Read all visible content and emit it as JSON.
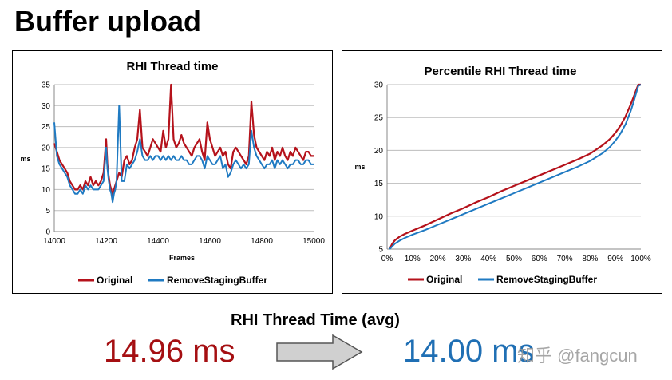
{
  "slide_title": "Buffer upload",
  "avg": {
    "heading": "RHI Thread Time (avg)",
    "original": "14.96 ms",
    "new": "14.00 ms"
  },
  "watermark": "知乎 @fangcun",
  "colors": {
    "original": "#b5121b",
    "remove": "#1f7ac2",
    "arrow_fill": "#d0d0d0",
    "arrow_stroke": "#555555"
  },
  "chart_data": [
    {
      "type": "line",
      "title": "RHI Thread time",
      "xlabel": "Frames",
      "ylabel": "ms",
      "xlim": [
        14000,
        15000
      ],
      "ylim": [
        0,
        35
      ],
      "x_ticks": [
        "14000",
        "14200",
        "14400",
        "14600",
        "14800",
        "15000"
      ],
      "y_ticks": [
        "0",
        "5",
        "10",
        "15",
        "20",
        "25",
        "30",
        "35"
      ],
      "grid": true,
      "legend": "bottom",
      "x": [
        14000,
        14010,
        14020,
        14030,
        14040,
        14050,
        14060,
        14070,
        14080,
        14090,
        14100,
        14110,
        14120,
        14130,
        14140,
        14150,
        14160,
        14170,
        14180,
        14190,
        14200,
        14205,
        14210,
        14215,
        14220,
        14225,
        14230,
        14235,
        14240,
        14250,
        14260,
        14270,
        14280,
        14290,
        14300,
        14310,
        14320,
        14330,
        14340,
        14350,
        14360,
        14370,
        14380,
        14390,
        14400,
        14410,
        14420,
        14430,
        14440,
        14450,
        14460,
        14470,
        14480,
        14490,
        14500,
        14510,
        14520,
        14530,
        14540,
        14550,
        14560,
        14570,
        14580,
        14590,
        14600,
        14610,
        14620,
        14630,
        14640,
        14650,
        14660,
        14670,
        14680,
        14690,
        14700,
        14710,
        14720,
        14730,
        14740,
        14750,
        14760,
        14770,
        14780,
        14790,
        14800,
        14810,
        14820,
        14830,
        14840,
        14850,
        14860,
        14870,
        14880,
        14890,
        14900,
        14910,
        14920,
        14930,
        14940,
        14950,
        14960,
        14970,
        14980,
        14990,
        15000
      ],
      "series": [
        {
          "name": "Original",
          "values": [
            21,
            19,
            17,
            16,
            15,
            14,
            12,
            11,
            10,
            10,
            11,
            10,
            12,
            11,
            13,
            11,
            12,
            11,
            12,
            14,
            22,
            16,
            13,
            11,
            10,
            8,
            10,
            11,
            12,
            14,
            13,
            17,
            18,
            16,
            17,
            20,
            22,
            29,
            20,
            19,
            18,
            20,
            22,
            21,
            20,
            19,
            24,
            20,
            22,
            35,
            22,
            20,
            21,
            23,
            21,
            20,
            19,
            18,
            20,
            21,
            22,
            19,
            17,
            26,
            22,
            20,
            18,
            19,
            20,
            18,
            19,
            16,
            15,
            19,
            20,
            19,
            18,
            17,
            16,
            18,
            31,
            23,
            20,
            19,
            18,
            17,
            19,
            18,
            20,
            17,
            19,
            18,
            20,
            18,
            17,
            19,
            18,
            20,
            19,
            18,
            17,
            19,
            19,
            18,
            18
          ]
        },
        {
          "name": "RemoveStagingBuffer",
          "values": [
            26,
            18,
            16,
            15,
            14,
            13,
            11,
            10,
            9,
            9,
            10,
            9,
            11,
            10,
            11,
            10,
            10,
            10,
            11,
            12,
            20,
            15,
            12,
            10,
            9,
            7,
            9,
            10,
            12,
            30,
            12,
            12,
            16,
            15,
            16,
            17,
            19,
            22,
            18,
            17,
            17,
            18,
            17,
            18,
            18,
            17,
            18,
            17,
            18,
            17,
            18,
            17,
            17,
            18,
            17,
            17,
            16,
            16,
            17,
            18,
            18,
            17,
            15,
            18,
            17,
            16,
            16,
            17,
            18,
            15,
            16,
            13,
            14,
            16,
            17,
            16,
            15,
            16,
            15,
            16,
            24,
            20,
            18,
            17,
            16,
            15,
            16,
            16,
            17,
            15,
            17,
            16,
            17,
            16,
            15,
            16,
            16,
            17,
            17,
            16,
            16,
            17,
            17,
            16,
            16
          ]
        }
      ]
    },
    {
      "type": "line",
      "title": "Percentile RHI Thread time",
      "xlabel": "",
      "ylabel": "ms",
      "xlim": [
        0,
        100
      ],
      "ylim": [
        5,
        30
      ],
      "x_ticks": [
        "0%",
        "10%",
        "20%",
        "30%",
        "40%",
        "50%",
        "60%",
        "70%",
        "80%",
        "90%",
        "100%"
      ],
      "y_ticks": [
        "5",
        "10",
        "15",
        "20",
        "25",
        "30"
      ],
      "grid": true,
      "legend": "bottom",
      "x": [
        1,
        2,
        3,
        5,
        7,
        10,
        15,
        20,
        25,
        30,
        35,
        40,
        45,
        50,
        55,
        60,
        65,
        70,
        75,
        80,
        85,
        88,
        90,
        92,
        94,
        96,
        97,
        98,
        99,
        100
      ],
      "series": [
        {
          "name": "Original",
          "values": [
            5.0,
            5.8,
            6.3,
            6.9,
            7.3,
            7.8,
            8.6,
            9.5,
            10.4,
            11.2,
            12.1,
            12.9,
            13.8,
            14.6,
            15.4,
            16.2,
            17.0,
            17.8,
            18.6,
            19.5,
            20.8,
            21.8,
            22.7,
            23.8,
            25.2,
            27.0,
            28.0,
            29.0,
            30.0,
            30.0
          ]
        },
        {
          "name": "RemoveStagingBuffer",
          "values": [
            5.0,
            5.4,
            5.8,
            6.3,
            6.7,
            7.2,
            7.9,
            8.7,
            9.5,
            10.3,
            11.1,
            11.9,
            12.7,
            13.5,
            14.3,
            15.1,
            15.9,
            16.7,
            17.5,
            18.4,
            19.6,
            20.6,
            21.5,
            22.6,
            24.0,
            26.0,
            27.2,
            28.5,
            29.8,
            30.0
          ]
        }
      ]
    }
  ]
}
